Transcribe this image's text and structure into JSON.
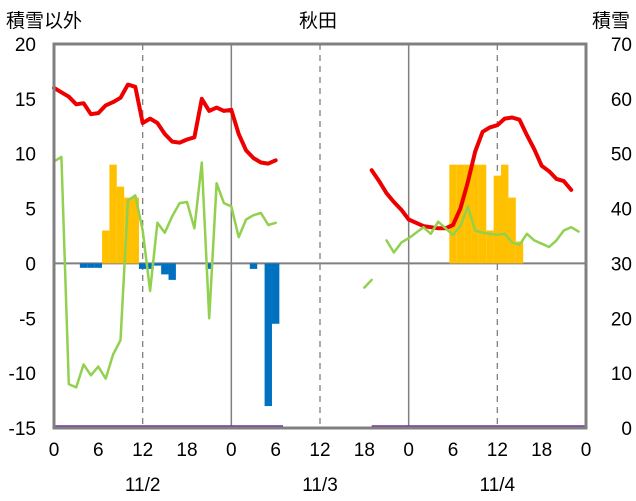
{
  "chart_data": {
    "type": "bar",
    "title": "秋田",
    "y_left_label": "積雪以外",
    "y_right_label": "積雪",
    "y_left_range": [
      -15,
      20
    ],
    "y_left_ticks": [
      "20",
      "15",
      "10",
      "5",
      "0",
      "-5",
      "-10",
      "-15"
    ],
    "y_right_range": [
      0,
      70
    ],
    "y_right_ticks": [
      "70",
      "60",
      "50",
      "40",
      "30",
      "20",
      "10",
      "0"
    ],
    "x_range_hours": [
      0,
      72
    ],
    "x_tick_labels": [
      "0",
      "6",
      "12",
      "18",
      "0",
      "6",
      "12",
      "18",
      "0",
      "6",
      "12",
      "18",
      "0"
    ],
    "date_labels": [
      {
        "text": "11/2",
        "hour": 12
      },
      {
        "text": "11/3",
        "hour": 36
      },
      {
        "text": "11/4",
        "hour": 60
      }
    ],
    "colors": {
      "temperature": "#ee0000",
      "dew_point": "#92d050",
      "snowfall": "#ffc000",
      "precipitation": "#0070c0",
      "snow_depth": "#7030a0",
      "frame": "#808080"
    },
    "series": [
      {
        "key": "temperature",
        "segments": [
          [
            [
              0,
              16.0
            ],
            [
              1,
              15.6
            ],
            [
              2,
              15.2
            ],
            [
              3,
              14.5
            ],
            [
              4,
              14.6
            ],
            [
              5,
              13.6
            ],
            [
              6,
              13.7
            ],
            [
              7,
              14.4
            ],
            [
              8,
              14.7
            ],
            [
              9,
              15.1
            ],
            [
              10,
              16.3
            ],
            [
              11,
              16.1
            ],
            [
              12,
              12.8
            ],
            [
              13,
              13.2
            ],
            [
              14,
              12.8
            ],
            [
              15,
              11.8
            ],
            [
              16,
              11.1
            ],
            [
              17,
              11.0
            ],
            [
              18,
              11.3
            ],
            [
              19,
              11.5
            ],
            [
              20,
              15.0
            ],
            [
              21,
              13.9
            ],
            [
              22,
              14.2
            ],
            [
              23,
              13.9
            ],
            [
              24,
              14.0
            ],
            [
              25,
              11.8
            ],
            [
              26,
              10.3
            ],
            [
              27,
              9.6
            ],
            [
              28,
              9.2
            ],
            [
              29,
              9.1
            ],
            [
              30,
              9.4
            ]
          ],
          [
            [
              43,
              8.5
            ],
            [
              44,
              7.5
            ],
            [
              45,
              6.4
            ],
            [
              46,
              5.6
            ],
            [
              47,
              4.9
            ],
            [
              48,
              4.0
            ],
            [
              49,
              3.7
            ],
            [
              50,
              3.4
            ],
            [
              51,
              3.3
            ],
            [
              52,
              3.2
            ],
            [
              53,
              3.2
            ],
            [
              54,
              3.5
            ],
            [
              55,
              5.0
            ],
            [
              56,
              7.4
            ],
            [
              57,
              10.2
            ],
            [
              58,
              12.0
            ],
            [
              59,
              12.4
            ],
            [
              60,
              12.6
            ],
            [
              61,
              13.2
            ],
            [
              62,
              13.3
            ],
            [
              63,
              13.1
            ],
            [
              64,
              11.7
            ],
            [
              65,
              10.4
            ],
            [
              66,
              8.9
            ],
            [
              67,
              8.4
            ],
            [
              68,
              7.7
            ],
            [
              69,
              7.5
            ],
            [
              70,
              6.7
            ]
          ]
        ]
      },
      {
        "key": "dew_point",
        "segments": [
          [
            [
              0,
              9.3
            ],
            [
              1,
              9.7
            ],
            [
              2,
              -11.0
            ],
            [
              3,
              -11.3
            ],
            [
              4,
              -9.2
            ],
            [
              5,
              -10.2
            ],
            [
              6,
              -9.4
            ],
            [
              7,
              -10.5
            ],
            [
              8,
              -8.3
            ],
            [
              9,
              -7.0
            ],
            [
              10,
              5.7
            ],
            [
              11,
              6.2
            ],
            [
              12,
              3.0
            ],
            [
              13,
              -2.5
            ],
            [
              14,
              3.7
            ],
            [
              15,
              2.8
            ],
            [
              16,
              4.3
            ],
            [
              17,
              5.5
            ],
            [
              18,
              5.6
            ],
            [
              19,
              3.2
            ],
            [
              20,
              9.2
            ],
            [
              21,
              -5.0
            ],
            [
              22,
              7.3
            ],
            [
              23,
              5.5
            ],
            [
              24,
              5.2
            ],
            [
              25,
              2.4
            ],
            [
              26,
              4.0
            ],
            [
              27,
              4.4
            ],
            [
              28,
              4.6
            ],
            [
              29,
              3.5
            ],
            [
              30,
              3.7
            ]
          ],
          [
            [
              42,
              -2.2
            ],
            [
              43,
              -1.5
            ]
          ],
          [
            [
              45,
              2.1
            ],
            [
              46,
              1.0
            ],
            [
              47,
              1.9
            ],
            [
              48,
              2.3
            ],
            [
              49,
              2.8
            ],
            [
              50,
              3.3
            ],
            [
              51,
              2.7
            ],
            [
              52,
              3.8
            ],
            [
              53,
              3.2
            ],
            [
              54,
              2.6
            ],
            [
              55,
              3.4
            ],
            [
              56,
              5.2
            ],
            [
              57,
              3.0
            ],
            [
              58,
              2.8
            ],
            [
              59,
              2.7
            ],
            [
              60,
              2.6
            ],
            [
              61,
              2.7
            ],
            [
              62,
              1.9
            ],
            [
              63,
              1.7
            ],
            [
              64,
              2.7
            ],
            [
              65,
              2.1
            ],
            [
              66,
              1.8
            ],
            [
              67,
              1.5
            ],
            [
              68,
              2.1
            ],
            [
              69,
              3.0
            ],
            [
              70,
              3.3
            ],
            [
              71,
              2.9
            ]
          ]
        ]
      }
    ],
    "snowfall_bars": [
      [
        7,
        3
      ],
      [
        8,
        9
      ],
      [
        9,
        7
      ],
      [
        10,
        6
      ],
      [
        11,
        6
      ],
      [
        54,
        9
      ],
      [
        55,
        9
      ],
      [
        56,
        9
      ],
      [
        57,
        9
      ],
      [
        58,
        9
      ],
      [
        59,
        3
      ],
      [
        60,
        8
      ],
      [
        61,
        9
      ],
      [
        62,
        6
      ],
      [
        63,
        2
      ]
    ],
    "precip_bars": [
      [
        4,
        -0.4
      ],
      [
        5,
        -0.4
      ],
      [
        6,
        -0.4
      ],
      [
        12,
        -0.5
      ],
      [
        13,
        -0.5
      ],
      [
        14,
        -0.2
      ],
      [
        15,
        -1.0
      ],
      [
        16,
        -1.5
      ],
      [
        21,
        -0.5
      ],
      [
        27,
        -0.5
      ],
      [
        29,
        -13.0
      ],
      [
        30,
        -5.5
      ]
    ],
    "snow_depth_line": [
      [
        0,
        0
      ],
      [
        31,
        0
      ],
      [
        43,
        0
      ],
      [
        72,
        0
      ]
    ]
  }
}
